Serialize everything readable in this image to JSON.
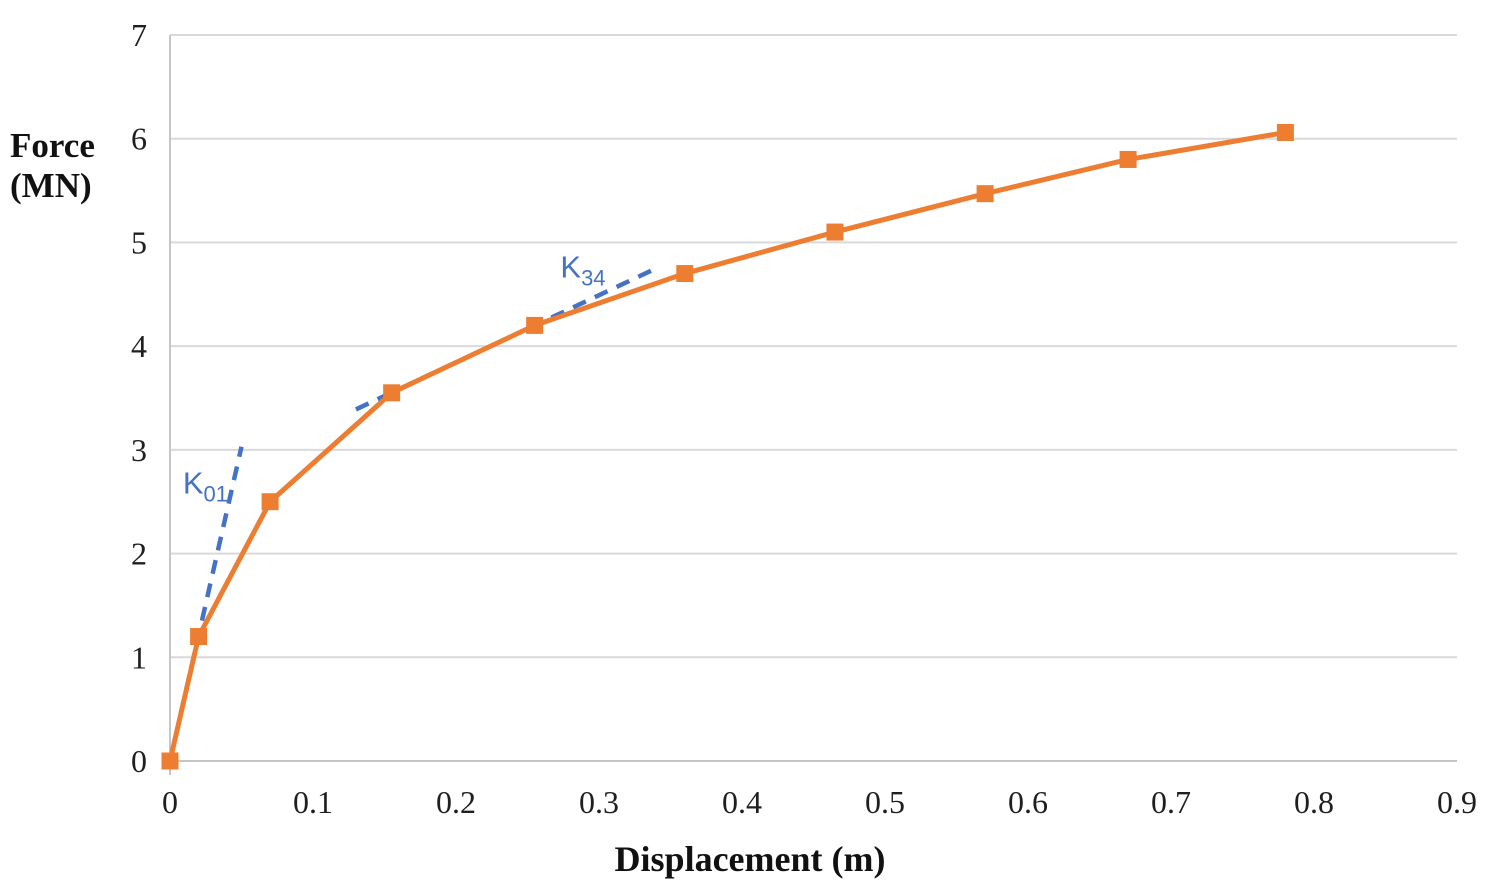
{
  "chart_data": {
    "type": "line",
    "title": "",
    "xlabel": "Displacement (m)",
    "ylabel": "Force (MN)",
    "ylabel_lines": [
      "Force",
      "(MN)"
    ],
    "x": [
      0,
      0.02,
      0.07,
      0.155,
      0.255,
      0.36,
      0.465,
      0.57,
      0.67,
      0.78
    ],
    "y": [
      0,
      1.2,
      2.5,
      3.55,
      4.2,
      4.7,
      5.1,
      5.47,
      5.8,
      6.06
    ],
    "series": [
      {
        "name": "force-displacement-curve",
        "color": "#ED7D31",
        "marker": "square",
        "line_style": "solid"
      }
    ],
    "xlim": [
      0,
      0.9
    ],
    "ylim": [
      0,
      7
    ],
    "xticks": [
      0,
      0.1,
      0.2,
      0.3,
      0.4,
      0.5,
      0.6,
      0.7,
      0.8,
      0.9
    ],
    "xtick_labels": [
      "0",
      "0.1",
      "0.2",
      "0.3",
      "0.4",
      "0.5",
      "0.6",
      "0.7",
      "0.8",
      "0.9"
    ],
    "yticks": [
      0,
      1,
      2,
      3,
      4,
      5,
      6,
      7
    ],
    "ytick_labels": [
      "0",
      "1",
      "2",
      "3",
      "4",
      "5",
      "6",
      "7"
    ],
    "grid": "horizontal",
    "gridline_color": "#D9D9D9",
    "axis_line_color": "#C6C6C6",
    "legend": "none",
    "annotations": [
      {
        "id": "k01",
        "label": "K",
        "sub": "01",
        "color": "#4472C4",
        "line_style": "dashed",
        "line": {
          "x1": 0,
          "y1": 0,
          "x2": 0.05,
          "y2": 3.03
        },
        "label_pos": {
          "x": 0.009,
          "y": 2.58
        }
      },
      {
        "id": "k34",
        "label": "K",
        "sub": "34",
        "color": "#4472C4",
        "line_style": "dashed",
        "line": {
          "x1": 0.13,
          "y1": 3.39,
          "x2": 0.34,
          "y2": 4.75
        },
        "label_pos": {
          "x": 0.273,
          "y": 4.66
        }
      }
    ]
  }
}
